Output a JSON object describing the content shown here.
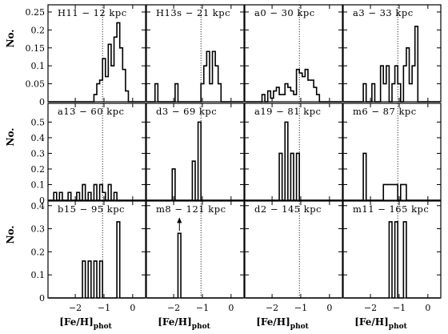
{
  "chart_data": {
    "type": "histogram-grid",
    "x_axis_label": "[Fe/H]",
    "x_axis_label_sub": "phot",
    "y_axis_label": "No.",
    "x_range": [
      -2.95,
      0.45
    ],
    "x_ticks": [
      -2,
      -1,
      0
    ],
    "x_tick_labels": [
      "−2",
      "−1",
      "0"
    ],
    "row_y_ranges": [
      [
        0,
        0.27
      ],
      [
        0,
        0.62
      ],
      [
        0,
        0.42
      ]
    ],
    "row_y_ticks": [
      [
        0,
        0.05,
        0.1,
        0.15,
        0.2,
        0.25
      ],
      [
        0,
        0.1,
        0.2,
        0.3,
        0.4,
        0.5
      ],
      [
        0,
        0.1,
        0.2,
        0.3,
        0.4
      ]
    ],
    "row_y_tick_labels": [
      [
        "0",
        "0.05",
        "0.1",
        "0.15",
        "0.2",
        "0.25"
      ],
      [
        "0",
        "0.1",
        "0.2",
        "0.3",
        "0.4",
        "0.5"
      ],
      [
        "0",
        "0.1",
        "0.2",
        "0.3",
        "0.4"
      ]
    ],
    "reference_line_x": -1.05,
    "panels": [
      {
        "label": "H11 − 12 kpc",
        "bins": [
          [
            -1.3,
            0.02
          ],
          [
            -1.2,
            0.05
          ],
          [
            -1.1,
            0.06
          ],
          [
            -1.0,
            0.12
          ],
          [
            -0.9,
            0.07
          ],
          [
            -0.8,
            0.16
          ],
          [
            -0.7,
            0.1
          ],
          [
            -0.6,
            0.18
          ],
          [
            -0.5,
            0.22
          ],
          [
            -0.4,
            0.15
          ],
          [
            -0.3,
            0.09
          ],
          [
            -0.2,
            0.03
          ]
        ]
      },
      {
        "label": "H13s − 21 kpc",
        "bins": [
          [
            -2.6,
            0.05
          ],
          [
            -1.9,
            0.05
          ],
          [
            -1.0,
            0.05
          ],
          [
            -0.9,
            0.1
          ],
          [
            -0.8,
            0.14
          ],
          [
            -0.7,
            0.05
          ],
          [
            -0.6,
            0.14
          ],
          [
            -0.5,
            0.1
          ],
          [
            -0.4,
            0.05
          ]
        ]
      },
      {
        "label": "a0 − 30 kpc",
        "bins": [
          [
            -2.3,
            0.02
          ],
          [
            -2.1,
            0.03
          ],
          [
            -2.0,
            0.01
          ],
          [
            -1.9,
            0.03
          ],
          [
            -1.8,
            0.04
          ],
          [
            -1.7,
            0.02
          ],
          [
            -1.6,
            0.02
          ],
          [
            -1.5,
            0.05
          ],
          [
            -1.4,
            0.04
          ],
          [
            -1.3,
            0.03
          ],
          [
            -1.2,
            0.02
          ],
          [
            -1.1,
            0.09
          ],
          [
            -1.0,
            0.08
          ],
          [
            -0.9,
            0.07
          ],
          [
            -0.8,
            0.09
          ],
          [
            -0.7,
            0.06
          ],
          [
            -0.6,
            0.06
          ],
          [
            -0.5,
            0.04
          ],
          [
            -0.4,
            0.02
          ]
        ]
      },
      {
        "label": "a3 − 33 kpc",
        "bins": [
          [
            -2.2,
            0.05
          ],
          [
            -1.9,
            0.05
          ],
          [
            -1.6,
            0.1
          ],
          [
            -1.5,
            0.05
          ],
          [
            -1.4,
            0.1
          ],
          [
            -1.2,
            0.05
          ],
          [
            -1.1,
            0.1
          ],
          [
            -1.0,
            0.05
          ],
          [
            -0.8,
            0.1
          ],
          [
            -0.7,
            0.15
          ],
          [
            -0.6,
            0.05
          ],
          [
            -0.5,
            0.1
          ],
          [
            -0.4,
            0.21
          ]
        ]
      },
      {
        "label": "a13 − 60 kpc",
        "bins": [
          [
            -2.7,
            0.05
          ],
          [
            -2.5,
            0.05
          ],
          [
            -2.2,
            0.05
          ],
          [
            -1.9,
            0.05
          ],
          [
            -1.7,
            0.1
          ],
          [
            -1.5,
            0.05
          ],
          [
            -1.3,
            0.1
          ],
          [
            -1.1,
            0.1
          ],
          [
            -1.0,
            0.05
          ],
          [
            -0.8,
            0.1
          ],
          [
            -0.6,
            0.05
          ]
        ]
      },
      {
        "label": "d3 − 69 kpc",
        "bins": [
          [
            -2.0,
            0.2
          ],
          [
            -1.3,
            0.25
          ],
          [
            -1.1,
            0.5
          ]
        ]
      },
      {
        "label": "a19 − 81 kpc",
        "bins": [
          [
            -1.7,
            0.3
          ],
          [
            -1.5,
            0.5
          ],
          [
            -1.3,
            0.3
          ],
          [
            -1.1,
            0.3
          ]
        ]
      },
      {
        "label": "m6 − 87 kpc",
        "bins": [
          [
            -2.2,
            0.3
          ],
          [
            -1.5,
            0.1
          ],
          [
            -1.4,
            0.1
          ],
          [
            -1.3,
            0.1
          ],
          [
            -1.2,
            0.1
          ],
          [
            -1.1,
            0.1
          ],
          [
            -0.9,
            0.1
          ],
          [
            -0.8,
            0.1
          ]
        ]
      },
      {
        "label": "b15 − 95 kpc",
        "bins": [
          [
            -1.7,
            0.16
          ],
          [
            -1.5,
            0.16
          ],
          [
            -1.3,
            0.16
          ],
          [
            -1.1,
            0.16
          ],
          [
            -0.5,
            0.33
          ]
        ]
      },
      {
        "label": "m8 − 121 kpc",
        "bins": [
          [
            -1.8,
            0.28
          ]
        ],
        "arrow_x": -1.8
      },
      {
        "label": "d2 − 145 kpc",
        "bins": []
      },
      {
        "label": "m11 − 165 kpc",
        "bins": [
          [
            -1.3,
            0.33
          ],
          [
            -1.1,
            0.33
          ],
          [
            -0.8,
            0.33
          ]
        ]
      }
    ]
  }
}
